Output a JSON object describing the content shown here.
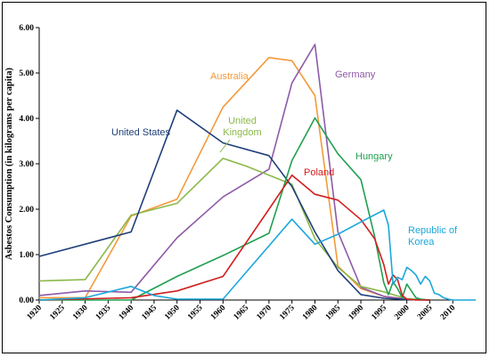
{
  "chart_data": {
    "type": "line",
    "title": "",
    "xlabel": "",
    "ylabel": "Asbestos Consumption (in kilograms per capita)",
    "xlim": [
      1920,
      2015
    ],
    "ylim": [
      0,
      6
    ],
    "x_ticks": [
      1920,
      1925,
      1930,
      1935,
      1940,
      1945,
      1950,
      1955,
      1960,
      1965,
      1970,
      1975,
      1980,
      1985,
      1990,
      1995,
      2000,
      2005,
      2010
    ],
    "y_ticks": [
      "0.00",
      "1.00",
      "2.00",
      "3.00",
      "4.00",
      "5.00",
      "6.00"
    ],
    "grid": false,
    "legend": "none (direct labels)",
    "series": [
      {
        "name": "United States",
        "color": "#1f3f7a",
        "x": [
          1920,
          1940,
          1950,
          1960,
          1970,
          1975,
          1980,
          1985,
          1990,
          1995,
          2000,
          2005
        ],
        "y": [
          0.96,
          1.5,
          4.18,
          3.46,
          3.18,
          2.5,
          1.5,
          0.65,
          0.12,
          0.04,
          0.01,
          0.0
        ]
      },
      {
        "name": "Australia",
        "color": "#f39a3a",
        "x": [
          1920,
          1930,
          1940,
          1950,
          1960,
          1970,
          1975,
          1980,
          1985,
          1990,
          1995,
          2000,
          2005
        ],
        "y": [
          0.05,
          0.05,
          1.85,
          2.22,
          4.25,
          5.34,
          5.27,
          4.5,
          0.75,
          0.25,
          0.08,
          0.02,
          0.0
        ]
      },
      {
        "name": "Germany",
        "color": "#8e5aa8",
        "x": [
          1920,
          1930,
          1940,
          1950,
          1960,
          1970,
          1975,
          1980,
          1985,
          1990,
          1995,
          2000,
          2005
        ],
        "y": [
          0.1,
          0.2,
          0.17,
          1.37,
          2.27,
          2.88,
          4.78,
          5.63,
          1.5,
          0.28,
          0.08,
          0.02,
          0.0
        ]
      },
      {
        "name": "United Kingdom",
        "color": "#8cb84a",
        "x": [
          1920,
          1930,
          1940,
          1950,
          1960,
          1965,
          1970,
          1975,
          1980,
          1985,
          1990,
          1995,
          2000,
          2005
        ],
        "y": [
          0.42,
          0.45,
          1.87,
          2.13,
          3.12,
          2.95,
          2.75,
          2.55,
          1.35,
          0.72,
          0.3,
          0.18,
          0.03,
          0.0
        ]
      },
      {
        "name": "Hungary",
        "color": "#1fa050",
        "x": [
          1920,
          1940,
          1950,
          1960,
          1970,
          1975,
          1980,
          1985,
          1990,
          1993,
          1995,
          1996,
          1997,
          1998,
          1999,
          2000,
          2001,
          2002,
          2003,
          2005
        ],
        "y": [
          0.0,
          0.0,
          0.52,
          0.98,
          1.47,
          3.07,
          4.01,
          3.22,
          2.65,
          1.4,
          0.38,
          0.12,
          0.4,
          0.25,
          0.05,
          0.35,
          0.2,
          0.05,
          0.02,
          0.0
        ]
      },
      {
        "name": "Poland",
        "color": "#d21e1e",
        "x": [
          1920,
          1940,
          1950,
          1960,
          1970,
          1975,
          1980,
          1985,
          1990,
          1993,
          1995,
          1996,
          1997,
          1998,
          1999,
          2000,
          2002,
          2005
        ],
        "y": [
          0.0,
          0.05,
          0.2,
          0.52,
          2.0,
          2.75,
          2.33,
          2.2,
          1.77,
          1.35,
          0.78,
          0.35,
          0.55,
          0.45,
          0.1,
          0.02,
          0.0,
          0.0
        ]
      },
      {
        "name": "Republic of Korea",
        "color": "#1aa7db",
        "x": [
          1920,
          1930,
          1940,
          1945,
          1950,
          1960,
          1975,
          1980,
          1985,
          1990,
          1995,
          1996,
          1997,
          1998,
          1999,
          2000,
          2001,
          2002,
          2003,
          2004,
          2005,
          2006,
          2007,
          2008,
          2009,
          2010,
          2011,
          2015
        ],
        "y": [
          0.0,
          0.05,
          0.3,
          0.1,
          0.02,
          0.02,
          1.78,
          1.23,
          1.45,
          1.72,
          1.98,
          1.65,
          0.35,
          0.5,
          0.45,
          0.72,
          0.65,
          0.55,
          0.35,
          0.52,
          0.42,
          0.15,
          0.12,
          0.05,
          0.02,
          0.0,
          0.0,
          0.0
        ]
      }
    ],
    "labels": [
      {
        "text": [
          "United States"
        ],
        "series": 0
      },
      {
        "text": [
          "Australia"
        ],
        "series": 1
      },
      {
        "text": [
          "Germany"
        ],
        "series": 2
      },
      {
        "text": [
          "United",
          "Kingdom"
        ],
        "series": 3
      },
      {
        "text": [
          "Hungary"
        ],
        "series": 4
      },
      {
        "text": [
          "Poland"
        ],
        "series": 5
      },
      {
        "text": [
          "Republic of",
          "Korea"
        ],
        "series": 6
      }
    ]
  }
}
